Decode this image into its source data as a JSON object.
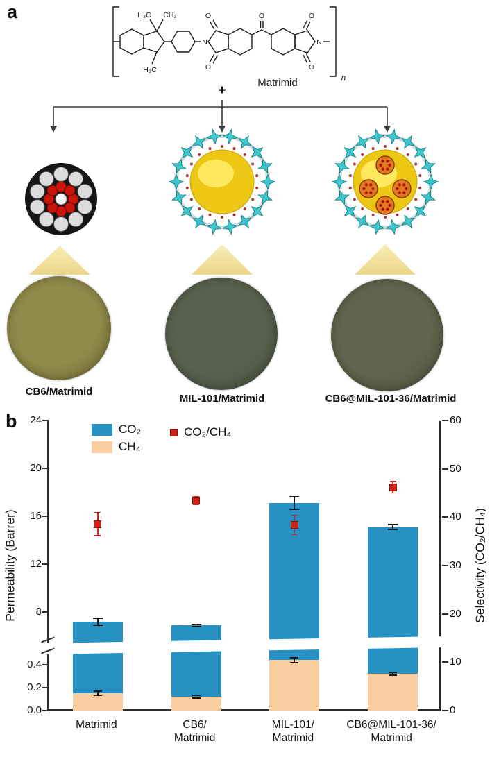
{
  "panel_a": {
    "label": "a",
    "structure": {
      "name": "Matrimid",
      "methyl_top_left": "H₃C",
      "methyl_top_right": "CH₃",
      "methyl_bottom": "H₃C",
      "nitrogen": "N",
      "oxygen": "O",
      "repeat_subscript": "n",
      "plus": "+"
    },
    "fillers": [
      "CB6",
      "MIL-101",
      "CB6@MIL-101-36"
    ],
    "membranes": [
      {
        "label": "CB6/Matrimid",
        "disc_color": "#908b4a",
        "disc_color_edge": "#6f6b33"
      },
      {
        "label": "MIL-101/Matrimid",
        "disc_color": "#59614d",
        "disc_color_edge": "#434a3a"
      },
      {
        "label": "CB6@MIL-101-36/Matrimid",
        "disc_color": "#60664d",
        "disc_color_edge": "#484e39"
      }
    ]
  },
  "panel_b": {
    "label": "b"
  },
  "chart_data": {
    "type": "bar",
    "title": "",
    "categories": [
      "Matrimid",
      "CB6/Matrimid",
      "MIL-101/Matrimid",
      "CB6@MIL-101-36/Matrimid"
    ],
    "categories_display": [
      [
        "Matrimid"
      ],
      [
        "CB6/",
        "Matrimid"
      ],
      [
        "MIL-101/",
        "Matrimid"
      ],
      [
        "CB6@MIL-101-36/",
        "Matrimid"
      ]
    ],
    "series": [
      {
        "name": "CO₂",
        "type": "bar",
        "axis": "left",
        "color": "#2791c3",
        "values": [
          7.2,
          6.9,
          17.1,
          15.1
        ],
        "errors": [
          0.3,
          0.1,
          0.55,
          0.2
        ]
      },
      {
        "name": "CH₄",
        "type": "bar",
        "axis": "left",
        "color": "#f9cda0",
        "values": [
          0.15,
          0.12,
          0.44,
          0.32
        ],
        "errors": [
          0.02,
          0.01,
          0.02,
          0.01
        ]
      },
      {
        "name": "CO₂/CH₄",
        "type": "scatter",
        "axis": "right",
        "color": "#cf2318",
        "values": [
          38.6,
          43.4,
          38.4,
          46.2
        ],
        "errors": [
          2.4,
          0.8,
          2.0,
          1.2
        ]
      }
    ],
    "left_axis": {
      "label": "Permeability (Barrer)",
      "broken": true,
      "top_ticks": [
        8,
        12,
        16,
        20,
        24
      ],
      "top_range": [
        5.7,
        24
      ],
      "bottom_ticks": [
        0.0,
        0.2,
        0.4
      ],
      "bottom_range": [
        0,
        0.52
      ]
    },
    "right_axis": {
      "label": "Selectivity (CO₂/CH₄)",
      "ticks": [
        0,
        10,
        20,
        30,
        40,
        50,
        60
      ],
      "range": [
        0,
        60
      ]
    },
    "legend_position": "top-left-inside",
    "grid": false
  }
}
